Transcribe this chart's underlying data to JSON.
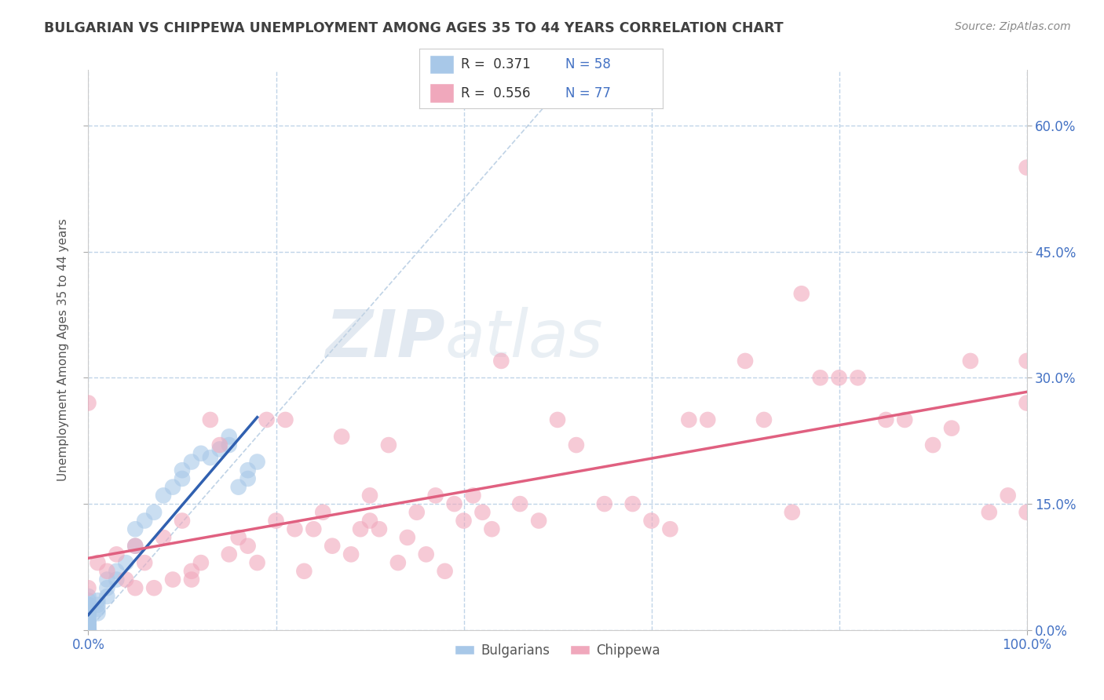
{
  "title": "BULGARIAN VS CHIPPEWA UNEMPLOYMENT AMONG AGES 35 TO 44 YEARS CORRELATION CHART",
  "source": "Source: ZipAtlas.com",
  "ylabel": "Unemployment Among Ages 35 to 44 years",
  "xlim": [
    0,
    1.0
  ],
  "ylim": [
    0,
    0.666
  ],
  "xticks": [
    0.0,
    1.0
  ],
  "xticklabels": [
    "0.0%",
    "100.0%"
  ],
  "yticks_right": [
    0.0,
    0.15,
    0.3,
    0.45,
    0.6
  ],
  "yticklabels_right": [
    "0.0%",
    "15.0%",
    "30.0%",
    "45.0%",
    "60.0%"
  ],
  "grid_yticks": [
    0.0,
    0.15,
    0.3,
    0.45,
    0.6
  ],
  "grid_xticks": [
    0.0,
    0.2,
    0.4,
    0.6,
    0.8,
    1.0
  ],
  "bulgarian_R": 0.371,
  "bulgarian_N": 58,
  "chippewa_R": 0.556,
  "chippewa_N": 77,
  "bulgarian_color": "#a8c8e8",
  "chippewa_color": "#f0a8bc",
  "bulgarian_trend_color": "#3060b0",
  "chippewa_trend_color": "#e06080",
  "ref_line_color": "#b0c8e0",
  "grid_color": "#c0d4e8",
  "background_color": "#ffffff",
  "title_color": "#404040",
  "watermark_zip": "ZIP",
  "watermark_atlas": "atlas",
  "bulgarian_x": [
    0.0,
    0.0,
    0.0,
    0.0,
    0.0,
    0.0,
    0.0,
    0.0,
    0.0,
    0.0,
    0.0,
    0.0,
    0.0,
    0.0,
    0.0,
    0.0,
    0.0,
    0.0,
    0.0,
    0.0,
    0.0,
    0.0,
    0.0,
    0.0,
    0.0,
    0.0,
    0.0,
    0.0,
    0.0,
    0.0,
    0.01,
    0.01,
    0.01,
    0.01,
    0.02,
    0.02,
    0.02,
    0.03,
    0.03,
    0.04,
    0.05,
    0.05,
    0.06,
    0.07,
    0.08,
    0.09,
    0.1,
    0.1,
    0.11,
    0.12,
    0.13,
    0.14,
    0.15,
    0.15,
    0.16,
    0.17,
    0.17,
    0.18
  ],
  "bulgarian_y": [
    0.0,
    0.0,
    0.0,
    0.0,
    0.0,
    0.0,
    0.0,
    0.0,
    0.0,
    0.0,
    0.005,
    0.005,
    0.005,
    0.005,
    0.005,
    0.01,
    0.01,
    0.01,
    0.01,
    0.015,
    0.015,
    0.02,
    0.02,
    0.02,
    0.025,
    0.025,
    0.03,
    0.03,
    0.035,
    0.04,
    0.02,
    0.025,
    0.03,
    0.035,
    0.04,
    0.05,
    0.06,
    0.06,
    0.07,
    0.08,
    0.1,
    0.12,
    0.13,
    0.14,
    0.16,
    0.17,
    0.18,
    0.19,
    0.2,
    0.21,
    0.205,
    0.215,
    0.22,
    0.23,
    0.17,
    0.18,
    0.19,
    0.2
  ],
  "chippewa_x": [
    0.0,
    0.0,
    0.01,
    0.02,
    0.03,
    0.04,
    0.05,
    0.05,
    0.06,
    0.07,
    0.08,
    0.09,
    0.1,
    0.11,
    0.11,
    0.12,
    0.13,
    0.14,
    0.15,
    0.16,
    0.17,
    0.18,
    0.19,
    0.2,
    0.21,
    0.22,
    0.23,
    0.24,
    0.25,
    0.26,
    0.27,
    0.28,
    0.29,
    0.3,
    0.3,
    0.31,
    0.32,
    0.33,
    0.34,
    0.35,
    0.36,
    0.37,
    0.38,
    0.39,
    0.4,
    0.41,
    0.42,
    0.43,
    0.44,
    0.46,
    0.48,
    0.5,
    0.52,
    0.55,
    0.58,
    0.6,
    0.62,
    0.64,
    0.66,
    0.7,
    0.72,
    0.75,
    0.76,
    0.78,
    0.8,
    0.82,
    0.85,
    0.87,
    0.9,
    0.92,
    0.94,
    0.96,
    0.98,
    1.0,
    1.0,
    1.0,
    1.0
  ],
  "chippewa_y": [
    0.27,
    0.05,
    0.08,
    0.07,
    0.09,
    0.06,
    0.1,
    0.05,
    0.08,
    0.05,
    0.11,
    0.06,
    0.13,
    0.07,
    0.06,
    0.08,
    0.25,
    0.22,
    0.09,
    0.11,
    0.1,
    0.08,
    0.25,
    0.13,
    0.25,
    0.12,
    0.07,
    0.12,
    0.14,
    0.1,
    0.23,
    0.09,
    0.12,
    0.16,
    0.13,
    0.12,
    0.22,
    0.08,
    0.11,
    0.14,
    0.09,
    0.16,
    0.07,
    0.15,
    0.13,
    0.16,
    0.14,
    0.12,
    0.32,
    0.15,
    0.13,
    0.25,
    0.22,
    0.15,
    0.15,
    0.13,
    0.12,
    0.25,
    0.25,
    0.32,
    0.25,
    0.14,
    0.4,
    0.3,
    0.3,
    0.3,
    0.25,
    0.25,
    0.22,
    0.24,
    0.32,
    0.14,
    0.16,
    0.27,
    0.14,
    0.32,
    0.55
  ],
  "bul_trend_x": [
    0.0,
    0.18
  ],
  "bul_trend_y": [
    0.02,
    0.2
  ],
  "chip_trend_x": [
    0.0,
    1.0
  ],
  "chip_trend_y": [
    0.06,
    0.27
  ]
}
